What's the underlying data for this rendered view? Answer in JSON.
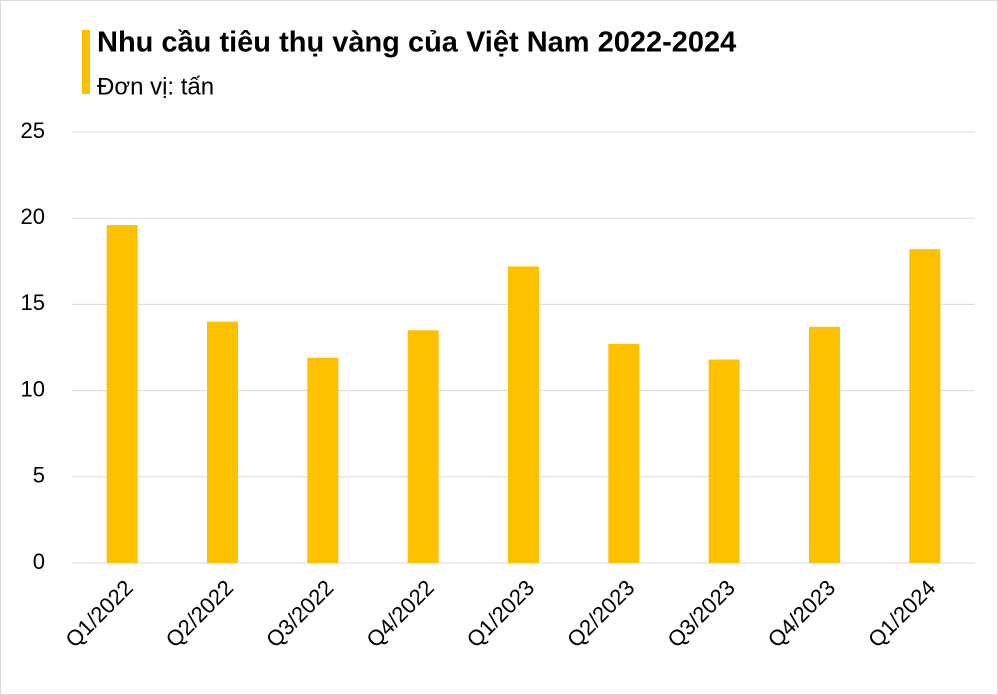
{
  "chart_data": {
    "type": "bar",
    "title": "Nhu cầu tiêu thụ vàng của Việt Nam 2022-2024",
    "subtitle": "Đơn vị: tấn",
    "categories": [
      "Q1/2022",
      "Q2/2022",
      "Q3/2022",
      "Q4/2022",
      "Q1/2023",
      "Q2/2023",
      "Q3/2023",
      "Q4/2023",
      "Q1/2024"
    ],
    "values": [
      19.6,
      14.0,
      11.9,
      13.5,
      17.2,
      12.7,
      11.8,
      13.7,
      18.2
    ],
    "color": "#ffc000",
    "ylim": [
      0,
      25
    ],
    "yticks": [
      0,
      5,
      10,
      15,
      20,
      25
    ],
    "grid": true
  }
}
